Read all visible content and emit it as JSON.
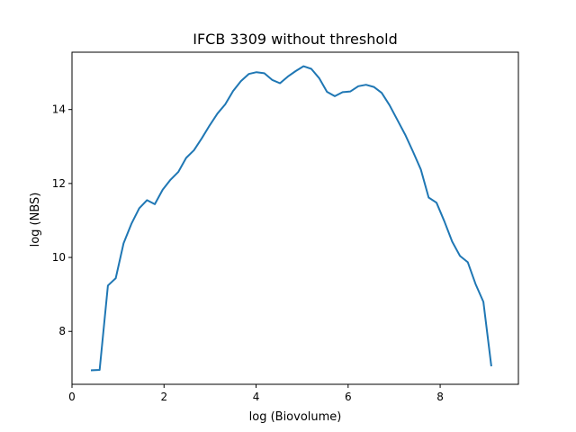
{
  "chart_data": {
    "type": "line",
    "title": "IFCB 3309 without threshold",
    "xlabel": "log (Biovolume)",
    "ylabel": "log (NBS)",
    "xlim": [
      0,
      9.7
    ],
    "ylim": [
      6.57,
      15.55
    ],
    "xticks": [
      0,
      2,
      4,
      6,
      8
    ],
    "yticks": [
      8,
      10,
      12,
      14
    ],
    "grid": false,
    "legend": "none",
    "series": [
      {
        "color": "#1f77b4",
        "points": [
          [
            0.43,
            6.95
          ],
          [
            0.6,
            6.96
          ],
          [
            0.78,
            9.24
          ],
          [
            0.95,
            9.44
          ],
          [
            1.12,
            10.38
          ],
          [
            1.29,
            10.91
          ],
          [
            1.46,
            11.33
          ],
          [
            1.63,
            11.55
          ],
          [
            1.8,
            11.44
          ],
          [
            1.97,
            11.83
          ],
          [
            2.14,
            12.1
          ],
          [
            2.31,
            12.31
          ],
          [
            2.48,
            12.69
          ],
          [
            2.65,
            12.9
          ],
          [
            2.82,
            13.22
          ],
          [
            2.99,
            13.57
          ],
          [
            3.16,
            13.89
          ],
          [
            3.33,
            14.14
          ],
          [
            3.5,
            14.5
          ],
          [
            3.67,
            14.77
          ],
          [
            3.84,
            14.96
          ],
          [
            4.01,
            15.01
          ],
          [
            4.18,
            14.98
          ],
          [
            4.35,
            14.8
          ],
          [
            4.52,
            14.71
          ],
          [
            4.69,
            14.89
          ],
          [
            4.86,
            15.04
          ],
          [
            5.03,
            15.17
          ],
          [
            5.2,
            15.1
          ],
          [
            5.37,
            14.85
          ],
          [
            5.54,
            14.48
          ],
          [
            5.71,
            14.36
          ],
          [
            5.88,
            14.47
          ],
          [
            6.05,
            14.49
          ],
          [
            6.22,
            14.63
          ],
          [
            6.39,
            14.67
          ],
          [
            6.56,
            14.61
          ],
          [
            6.73,
            14.45
          ],
          [
            6.9,
            14.12
          ],
          [
            7.07,
            13.72
          ],
          [
            7.24,
            13.32
          ],
          [
            7.41,
            12.86
          ],
          [
            7.58,
            12.38
          ],
          [
            7.75,
            11.62
          ],
          [
            7.92,
            11.48
          ],
          [
            8.09,
            10.98
          ],
          [
            8.26,
            10.43
          ],
          [
            8.43,
            10.04
          ],
          [
            8.6,
            9.87
          ],
          [
            8.77,
            9.28
          ],
          [
            8.94,
            8.8
          ],
          [
            9.11,
            7.08
          ]
        ]
      }
    ]
  }
}
